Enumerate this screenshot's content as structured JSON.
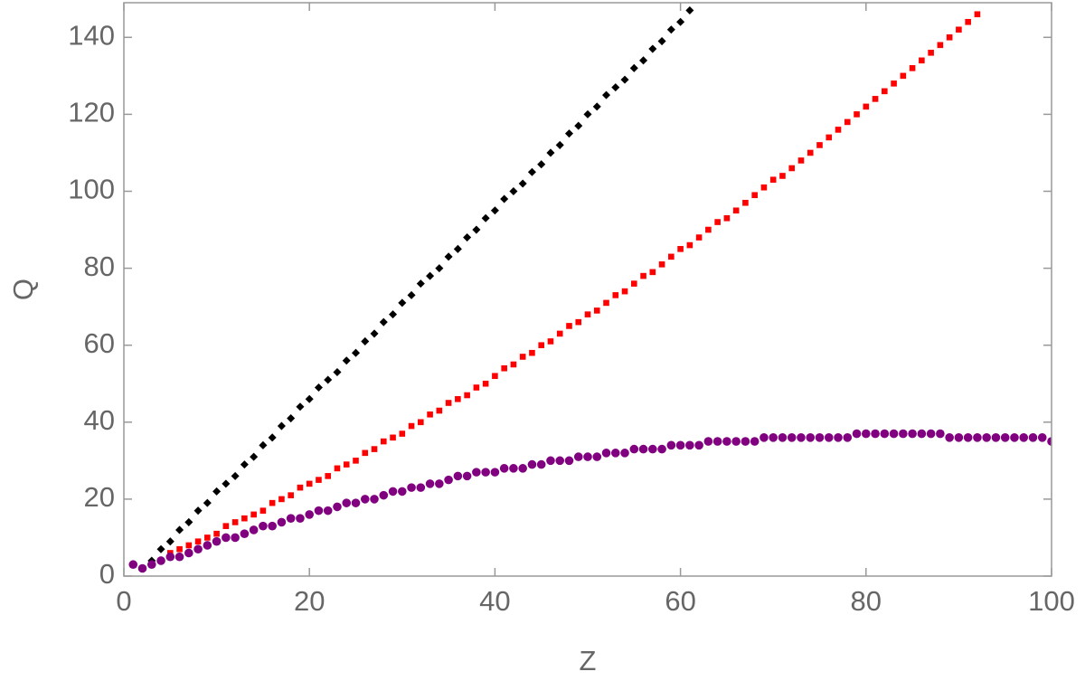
{
  "chart_data": {
    "type": "scatter",
    "xlabel": "Z",
    "ylabel": "Q",
    "xlim": [
      0,
      100
    ],
    "ylim": [
      0,
      149
    ],
    "xticks": [
      0,
      20,
      40,
      60,
      80,
      100
    ],
    "yticks": [
      0,
      20,
      40,
      60,
      80,
      100,
      120,
      140
    ],
    "series": [
      {
        "color": "#000000",
        "marker": "diamond",
        "x": [
          2,
          3,
          4,
          5,
          6,
          7,
          8,
          9,
          10,
          11,
          12,
          13,
          14,
          15,
          16,
          17,
          18,
          19,
          20,
          21,
          22,
          23,
          24,
          25,
          26,
          27,
          28,
          29,
          30,
          31,
          32,
          33,
          34,
          35,
          36,
          37,
          38,
          39,
          40,
          41,
          42,
          43,
          44,
          45,
          46,
          47,
          48,
          49,
          50,
          51,
          52,
          53,
          54,
          55,
          56,
          57,
          58,
          59,
          60,
          61
        ],
        "values": [
          2,
          4,
          7,
          9,
          12,
          14,
          17,
          19,
          22,
          24,
          26,
          29,
          31,
          34,
          36,
          39,
          41,
          44,
          46,
          49,
          51,
          53,
          56,
          58,
          61,
          63,
          66,
          68,
          71,
          73,
          76,
          78,
          80,
          83,
          85,
          88,
          90,
          93,
          95,
          98,
          100,
          102,
          105,
          107,
          110,
          112,
          115,
          117,
          120,
          122,
          125,
          127,
          129,
          132,
          134,
          137,
          139,
          142,
          144,
          147
        ]
      },
      {
        "color": "#ff0000",
        "marker": "square",
        "x": [
          2,
          3,
          4,
          5,
          6,
          7,
          8,
          9,
          10,
          11,
          12,
          13,
          14,
          15,
          16,
          17,
          18,
          19,
          20,
          21,
          22,
          23,
          24,
          25,
          26,
          27,
          28,
          29,
          30,
          31,
          32,
          33,
          34,
          35,
          36,
          37,
          38,
          39,
          40,
          41,
          42,
          43,
          44,
          45,
          46,
          47,
          48,
          49,
          50,
          51,
          52,
          53,
          54,
          55,
          56,
          57,
          58,
          59,
          60,
          61,
          62,
          63,
          64,
          65,
          66,
          67,
          68,
          69,
          70,
          71,
          72,
          73,
          74,
          75,
          76,
          77,
          78,
          79,
          80,
          81,
          82,
          83,
          84,
          85,
          86,
          87,
          88,
          89,
          90,
          91,
          92
        ],
        "values": [
          2,
          3,
          4,
          6,
          7,
          8,
          9,
          10,
          11,
          13,
          14,
          15,
          16,
          17,
          19,
          20,
          21,
          23,
          24,
          25,
          26,
          28,
          29,
          30,
          32,
          33,
          35,
          36,
          37,
          39,
          40,
          42,
          43,
          45,
          46,
          47,
          49,
          50,
          52,
          54,
          55,
          57,
          58,
          60,
          61,
          63,
          65,
          66,
          68,
          69,
          71,
          73,
          74,
          76,
          78,
          79,
          81,
          83,
          85,
          86,
          88,
          90,
          92,
          93,
          95,
          97,
          99,
          101,
          103,
          104,
          106,
          108,
          110,
          112,
          114,
          116,
          118,
          120,
          122,
          124,
          126,
          128,
          130,
          132,
          134,
          136,
          138,
          140,
          142,
          144,
          146
        ]
      },
      {
        "color": "#800080",
        "marker": "circle",
        "x": [
          1,
          2,
          3,
          4,
          5,
          6,
          7,
          8,
          9,
          10,
          11,
          12,
          13,
          14,
          15,
          16,
          17,
          18,
          19,
          20,
          21,
          22,
          23,
          24,
          25,
          26,
          27,
          28,
          29,
          30,
          31,
          32,
          33,
          34,
          35,
          36,
          37,
          38,
          39,
          40,
          41,
          42,
          43,
          44,
          45,
          46,
          47,
          48,
          49,
          50,
          51,
          52,
          53,
          54,
          55,
          56,
          57,
          58,
          59,
          60,
          61,
          62,
          63,
          64,
          65,
          66,
          67,
          68,
          69,
          70,
          71,
          72,
          73,
          74,
          75,
          76,
          77,
          78,
          79,
          80,
          81,
          82,
          83,
          84,
          85,
          86,
          87,
          88,
          89,
          90,
          91,
          92,
          93,
          94,
          95,
          96,
          97,
          98,
          99,
          100
        ],
        "values": [
          3,
          2,
          3,
          4,
          5,
          5,
          6,
          7,
          8,
          9,
          10,
          10,
          11,
          12,
          13,
          13,
          14,
          15,
          15,
          16,
          17,
          17,
          18,
          19,
          19,
          20,
          20,
          21,
          22,
          22,
          23,
          23,
          24,
          24,
          25,
          26,
          26,
          27,
          27,
          27,
          28,
          28,
          28,
          29,
          29,
          30,
          30,
          30,
          31,
          31,
          31,
          32,
          32,
          32,
          33,
          33,
          33,
          33,
          34,
          34,
          34,
          34,
          35,
          35,
          35,
          35,
          35,
          35,
          36,
          36,
          36,
          36,
          36,
          36,
          36,
          36,
          36,
          36,
          37,
          37,
          37,
          37,
          37,
          37,
          37,
          37,
          37,
          37,
          36,
          36,
          36,
          36,
          36,
          36,
          36,
          36,
          36,
          36,
          36,
          35
        ]
      }
    ]
  }
}
